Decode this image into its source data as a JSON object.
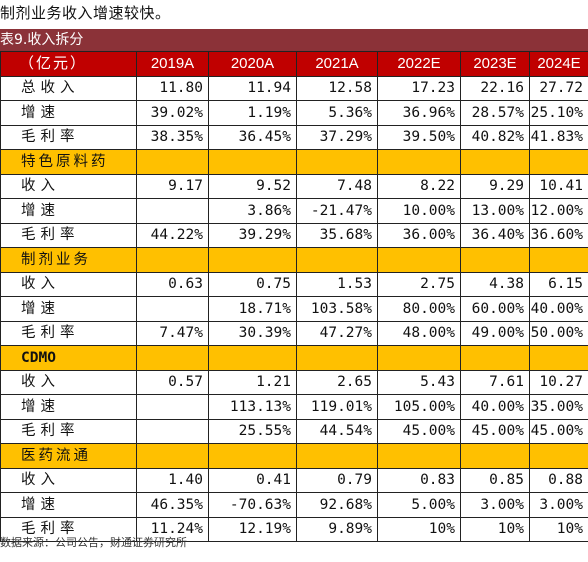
{
  "intro_text": "制剂业务收入增速较快。",
  "caption": "表9.收入拆分",
  "header": [
    "（亿元）",
    "2019A",
    "2020A",
    "2021A",
    "2022E",
    "2023E",
    "2024E"
  ],
  "rows": [
    {
      "type": "data",
      "cells": [
        "总收入",
        "11.80",
        "11.94",
        "12.58",
        "17.23",
        "22.16",
        "27.72"
      ]
    },
    {
      "type": "data",
      "cells": [
        "增速",
        "39.02%",
        "1.19%",
        "5.36%",
        "36.96%",
        "28.57%",
        "25.10%"
      ]
    },
    {
      "type": "data",
      "cells": [
        "毛利率",
        "38.35%",
        "36.45%",
        "37.29%",
        "39.50%",
        "40.82%",
        "41.83%"
      ]
    },
    {
      "type": "section",
      "cells": [
        "特色原料药",
        "",
        "",
        "",
        "",
        "",
        ""
      ]
    },
    {
      "type": "data",
      "cells": [
        "收入",
        "9.17",
        "9.52",
        "7.48",
        "8.22",
        "9.29",
        "10.41"
      ]
    },
    {
      "type": "data",
      "cells": [
        "增速",
        "",
        "3.86%",
        "-21.47%",
        "10.00%",
        "13.00%",
        "12.00%"
      ]
    },
    {
      "type": "data",
      "cells": [
        "毛利率",
        "44.22%",
        "39.29%",
        "35.68%",
        "36.00%",
        "36.40%",
        "36.60%"
      ]
    },
    {
      "type": "section",
      "cells": [
        "制剂业务",
        "",
        "",
        "",
        "",
        "",
        ""
      ]
    },
    {
      "type": "data",
      "cells": [
        "收入",
        "0.63",
        "0.75",
        "1.53",
        "2.75",
        "4.38",
        "6.15"
      ]
    },
    {
      "type": "data",
      "cells": [
        "增速",
        "",
        "18.71%",
        "103.58%",
        "80.00%",
        "60.00%",
        "40.00%"
      ]
    },
    {
      "type": "data",
      "cells": [
        "毛利率",
        "7.47%",
        "30.39%",
        "47.27%",
        "48.00%",
        "49.00%",
        "50.00%"
      ]
    },
    {
      "type": "section-bold",
      "cells": [
        "CDMO",
        "",
        "",
        "",
        "",
        "",
        ""
      ]
    },
    {
      "type": "data",
      "cells": [
        "收入",
        "0.57",
        "1.21",
        "2.65",
        "5.43",
        "7.61",
        "10.27"
      ]
    },
    {
      "type": "data",
      "cells": [
        "增速",
        "",
        "113.13%",
        "119.01%",
        "105.00%",
        "40.00%",
        "35.00%"
      ]
    },
    {
      "type": "data",
      "cells": [
        "毛利率",
        "",
        "25.55%",
        "44.54%",
        "45.00%",
        "45.00%",
        "45.00%"
      ]
    },
    {
      "type": "section",
      "cells": [
        "医药流通",
        "",
        "",
        "",
        "",
        "",
        ""
      ]
    },
    {
      "type": "data",
      "cells": [
        "收入",
        "1.40",
        "0.41",
        "0.79",
        "0.83",
        "0.85",
        "0.88"
      ]
    },
    {
      "type": "data",
      "cells": [
        "增速",
        "46.35%",
        "-70.63%",
        "92.68%",
        "5.00%",
        "3.00%",
        "3.00%"
      ]
    },
    {
      "type": "data",
      "cells": [
        "毛利率",
        "11.24%",
        "12.19%",
        "9.89%",
        "10%",
        "10%",
        "10%"
      ]
    }
  ],
  "source": "数据来源：公司公告，财通证券研究所",
  "colors": {
    "caption_bg": "#8b3238",
    "header_bg": "#c00000",
    "section_bg": "#ffc000"
  }
}
